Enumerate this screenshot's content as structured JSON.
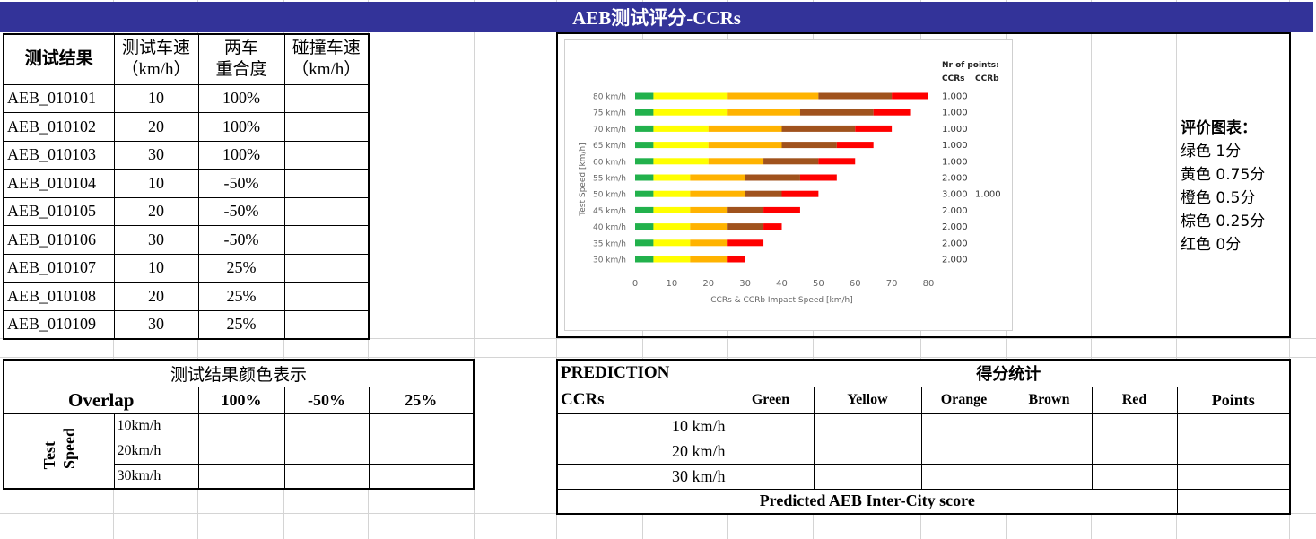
{
  "title": "AEB测试评分-CCRs",
  "results": {
    "headers": [
      "测试结果",
      "测试车速\n（km/h）",
      "两车\n重合度",
      "碰撞车速\n（km/h）"
    ],
    "rows": [
      {
        "id": "AEB_010101",
        "speed": "10",
        "overlap": "100%",
        "impact": ""
      },
      {
        "id": "AEB_010102",
        "speed": "20",
        "overlap": "100%",
        "impact": ""
      },
      {
        "id": "AEB_010103",
        "speed": "30",
        "overlap": "100%",
        "impact": ""
      },
      {
        "id": "AEB_010104",
        "speed": "10",
        "overlap": "-50%",
        "impact": ""
      },
      {
        "id": "AEB_010105",
        "speed": "20",
        "overlap": "-50%",
        "impact": ""
      },
      {
        "id": "AEB_010106",
        "speed": "30",
        "overlap": "-50%",
        "impact": ""
      },
      {
        "id": "AEB_010107",
        "speed": "10",
        "overlap": "25%",
        "impact": ""
      },
      {
        "id": "AEB_010108",
        "speed": "20",
        "overlap": "25%",
        "impact": ""
      },
      {
        "id": "AEB_010109",
        "speed": "30",
        "overlap": "25%",
        "impact": ""
      }
    ]
  },
  "color_table": {
    "title": "测试结果颜色表示",
    "overlap_label": "Overlap",
    "overlaps": [
      "100%",
      "-50%",
      "25%"
    ],
    "side_label_1": "Test",
    "side_label_2": "Speed",
    "speeds": [
      "10km/h",
      "20km/h",
      "30km/h"
    ]
  },
  "prediction": {
    "label": "PREDICTION",
    "score_stats": "得分统计",
    "ccrs": "CCRs",
    "columns": [
      "Green",
      "Yellow",
      "Orange",
      "Brown",
      "Red",
      "Points"
    ],
    "speeds": [
      "10 km/h",
      "20 km/h",
      "30 km/h"
    ],
    "footer": "Predicted AEB Inter-City score"
  },
  "legend": {
    "title": "评价图表：",
    "items": [
      "绿色 1分",
      "黄色 0.75分",
      "橙色 0.5分",
      "棕色 0.25分",
      "红色 0分"
    ]
  },
  "colors": {
    "title_bg": "#333399",
    "green": "#22b14c",
    "yellow": "#ffff00",
    "orange": "#ffb300",
    "brown": "#a0521d",
    "red": "#ff0000"
  },
  "chart_data": {
    "type": "bar",
    "orientation": "horizontal",
    "stacked": true,
    "ylabel": "Test Speed [km/h]",
    "xlabel": "CCRs & CCRb Impact Speed [km/h]",
    "xlim": [
      0,
      80
    ],
    "xticks": [
      0,
      10,
      20,
      30,
      40,
      50,
      60,
      70,
      80
    ],
    "categories": [
      "80 km/h",
      "75 km/h",
      "70 km/h",
      "65 km/h",
      "60 km/h",
      "55 km/h",
      "50 km/h",
      "45 km/h",
      "40 km/h",
      "35 km/h",
      "30 km/h"
    ],
    "series": [
      {
        "name": "Green",
        "color": "#22b14c",
        "values": [
          5,
          5,
          5,
          5,
          5,
          5,
          5,
          5,
          5,
          5,
          5
        ]
      },
      {
        "name": "Yellow",
        "color": "#ffff00",
        "values": [
          20,
          20,
          15,
          15,
          15,
          10,
          10,
          10,
          10,
          10,
          10
        ]
      },
      {
        "name": "Orange",
        "color": "#ffb300",
        "values": [
          25,
          20,
          20,
          20,
          15,
          15,
          15,
          10,
          10,
          10,
          10
        ]
      },
      {
        "name": "Brown",
        "color": "#a0521d",
        "values": [
          20,
          20,
          20,
          15,
          15,
          15,
          10,
          10,
          10,
          0,
          0
        ]
      },
      {
        "name": "Red",
        "color": "#ff0000",
        "values": [
          10,
          10,
          10,
          10,
          10,
          10,
          10,
          10,
          5,
          10,
          5
        ]
      }
    ],
    "points_header": "Nr of points:",
    "points_columns": [
      "CCRs",
      "CCRb"
    ],
    "points_ccrs": [
      "1.000",
      "1.000",
      "1.000",
      "1.000",
      "1.000",
      "2.000",
      "3.000",
      "2.000",
      "2.000",
      "2.000",
      "2.000"
    ],
    "points_ccrb": [
      "",
      "",
      "",
      "",
      "",
      "",
      "1.000",
      "",
      "",
      "",
      ""
    ]
  }
}
